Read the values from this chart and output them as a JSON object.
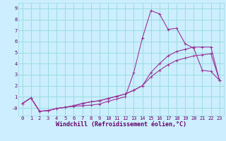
{
  "xlabel": "Windchill (Refroidissement éolien,°C)",
  "bg_color": "#cceeff",
  "grid_color": "#99dddd",
  "line_color": "#993399",
  "xlim": [
    -0.5,
    23.5
  ],
  "ylim": [
    -0.7,
    9.5
  ],
  "xticks": [
    0,
    1,
    2,
    3,
    4,
    5,
    6,
    7,
    8,
    9,
    10,
    11,
    12,
    13,
    14,
    15,
    16,
    17,
    18,
    19,
    20,
    21,
    22,
    23
  ],
  "yticks": [
    0,
    1,
    2,
    3,
    4,
    5,
    6,
    7,
    8,
    9
  ],
  "series": [
    [
      0.4,
      0.9,
      -0.3,
      -0.25,
      -0.05,
      0.05,
      0.15,
      0.2,
      0.25,
      0.35,
      0.6,
      0.8,
      1.0,
      3.2,
      6.3,
      8.8,
      8.5,
      7.1,
      7.2,
      5.8,
      5.4,
      3.4,
      3.3,
      2.5
    ],
    [
      0.4,
      0.9,
      -0.3,
      -0.25,
      -0.05,
      0.05,
      0.2,
      0.4,
      0.55,
      0.65,
      0.85,
      1.05,
      1.25,
      1.6,
      2.0,
      3.2,
      4.0,
      4.7,
      5.1,
      5.3,
      5.5,
      5.5,
      5.5,
      2.5
    ],
    [
      0.4,
      0.9,
      -0.3,
      -0.25,
      -0.05,
      0.05,
      0.2,
      0.4,
      0.55,
      0.65,
      0.85,
      1.05,
      1.25,
      1.6,
      2.0,
      2.8,
      3.4,
      3.9,
      4.3,
      4.5,
      4.7,
      4.8,
      4.9,
      2.5
    ]
  ],
  "font_color": "#660066",
  "tick_fontsize": 5,
  "xlabel_fontsize": 6
}
